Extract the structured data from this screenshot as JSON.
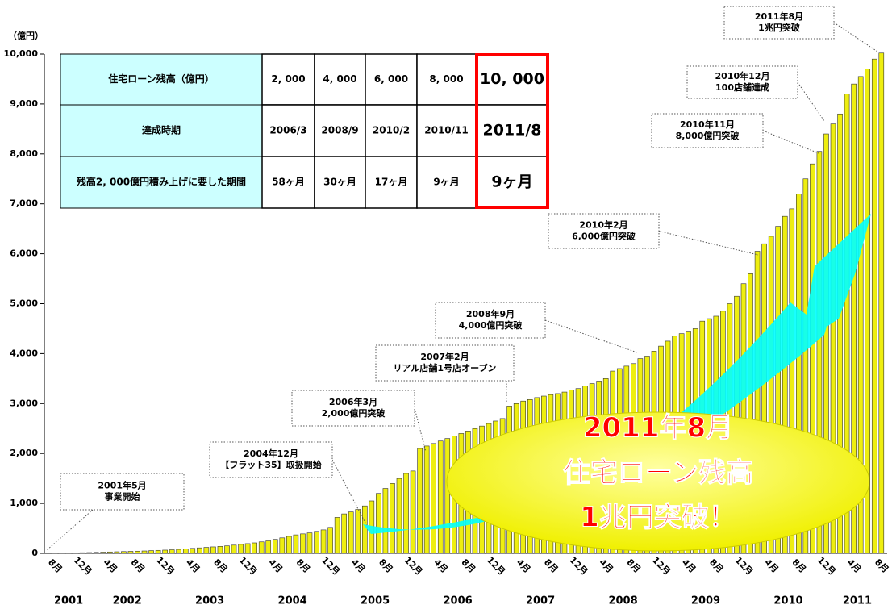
{
  "chart_data": {
    "type": "bar",
    "y_unit": "（億円）",
    "ylim": [
      0,
      10000
    ],
    "yticks": [
      0,
      {
        "value": 1000,
        "label": "1,000"
      },
      {
        "value": 2000,
        "label": "2,000"
      },
      {
        "value": 3000,
        "label": "3,000"
      },
      {
        "value": 4000,
        "label": "4,000"
      },
      {
        "value": 5000,
        "label": "5,000"
      },
      {
        "value": 6000,
        "label": "6,000"
      },
      {
        "value": 7000,
        "label": "7,000"
      },
      {
        "value": 8000,
        "label": "8,000"
      },
      {
        "value": 9000,
        "label": "9,000"
      },
      {
        "value": 10000,
        "label": "10,000"
      }
    ],
    "color": "#eeee10",
    "categories": [
      "8月",
      null,
      null,
      null,
      "12月",
      null,
      null,
      null,
      "4月",
      null,
      null,
      null,
      "8月",
      null,
      null,
      null,
      "12月",
      null,
      null,
      null,
      "4月",
      null,
      null,
      null,
      "8月",
      null,
      null,
      null,
      "12月",
      null,
      null,
      null,
      "4月",
      null,
      null,
      null,
      "8月",
      null,
      null,
      null,
      "12月",
      null,
      null,
      null,
      "4月",
      null,
      null,
      null,
      "8月",
      null,
      null,
      null,
      "12月",
      null,
      null,
      null,
      "4月",
      null,
      null,
      null,
      "8月",
      null,
      null,
      null,
      "12月",
      null,
      null,
      null,
      "4月",
      null,
      null,
      null,
      "8月",
      null,
      null,
      null,
      "12月",
      null,
      null,
      null,
      "4月",
      null,
      null,
      null,
      "8月",
      null,
      null,
      null,
      "12月",
      null,
      null,
      null,
      "4月",
      null,
      null,
      null,
      "8月",
      null,
      null,
      null,
      "12月",
      null,
      null,
      null,
      "4月",
      null,
      null,
      null,
      "8月",
      null,
      null,
      null,
      "12月",
      null,
      null,
      null,
      "4月",
      null,
      null,
      null,
      "8月"
    ],
    "years": [
      "2001",
      "2002",
      "2003",
      "2004",
      "2005",
      "2006",
      "2007",
      "2008",
      "2009",
      "2010",
      "2011"
    ],
    "values": [
      2,
      5,
      8,
      10,
      13,
      16,
      20,
      24,
      28,
      32,
      36,
      40,
      44,
      48,
      55,
      60,
      65,
      72,
      80,
      90,
      100,
      110,
      120,
      130,
      140,
      150,
      165,
      180,
      195,
      210,
      230,
      250,
      280,
      310,
      340,
      370,
      390,
      410,
      440,
      470,
      520,
      720,
      790,
      830,
      880,
      950,
      1050,
      1200,
      1300,
      1400,
      1500,
      1600,
      1650,
      2100,
      2150,
      2200,
      2250,
      2300,
      2350,
      2400,
      2450,
      2500,
      2550,
      2600,
      2650,
      2700,
      2950,
      3000,
      3050,
      3080,
      3120,
      3150,
      3180,
      3200,
      3230,
      3270,
      3300,
      3350,
      3400,
      3450,
      3500,
      3650,
      3700,
      3750,
      3800,
      3900,
      3950,
      4050,
      4150,
      4250,
      4350,
      4400,
      4450,
      4500,
      4650,
      4700,
      4750,
      4850,
      5000,
      5150,
      5400,
      5600,
      6050,
      6200,
      6350,
      6550,
      6750,
      6900,
      7200,
      7500,
      7800,
      8050,
      8400,
      8600,
      8800,
      9200,
      9400,
      9550,
      9700,
      9900,
      10020
    ],
    "annotations": [
      [
        "2001年5月",
        "事業開始"
      ],
      [
        "2004年12月",
        "【フラット35】取扱開始"
      ],
      [
        "2006年3月",
        "2,000億円突破"
      ],
      [
        "2007年2月",
        "リアル店舗1号店オープン"
      ],
      [
        "2008年9月",
        "4,000億円突破"
      ],
      [
        "2010年2月",
        "6,000億円突破"
      ],
      [
        "2010年11月",
        "8,000億円突破"
      ],
      [
        "2010年12月",
        "100店舗達成"
      ],
      [
        "2011年8月",
        "1兆円突破"
      ]
    ],
    "highlight": [
      "2011年8月",
      "住宅ローン残高",
      "1兆円突破！"
    ]
  },
  "table": {
    "rows": [
      [
        "住宅ローン残高（億円）",
        "2, 000",
        "4, 000",
        "6, 000",
        "8, 000",
        "10, 000"
      ],
      [
        "達成時期",
        "2006/3",
        "2008/9",
        "2010/2",
        "2010/11",
        "2011/8"
      ],
      [
        "残高2, 000億円積み上げに要した期間",
        "58ヶ月",
        "30ヶ月",
        "17ヶ月",
        "9ヶ月",
        "9ヶ月"
      ]
    ]
  }
}
